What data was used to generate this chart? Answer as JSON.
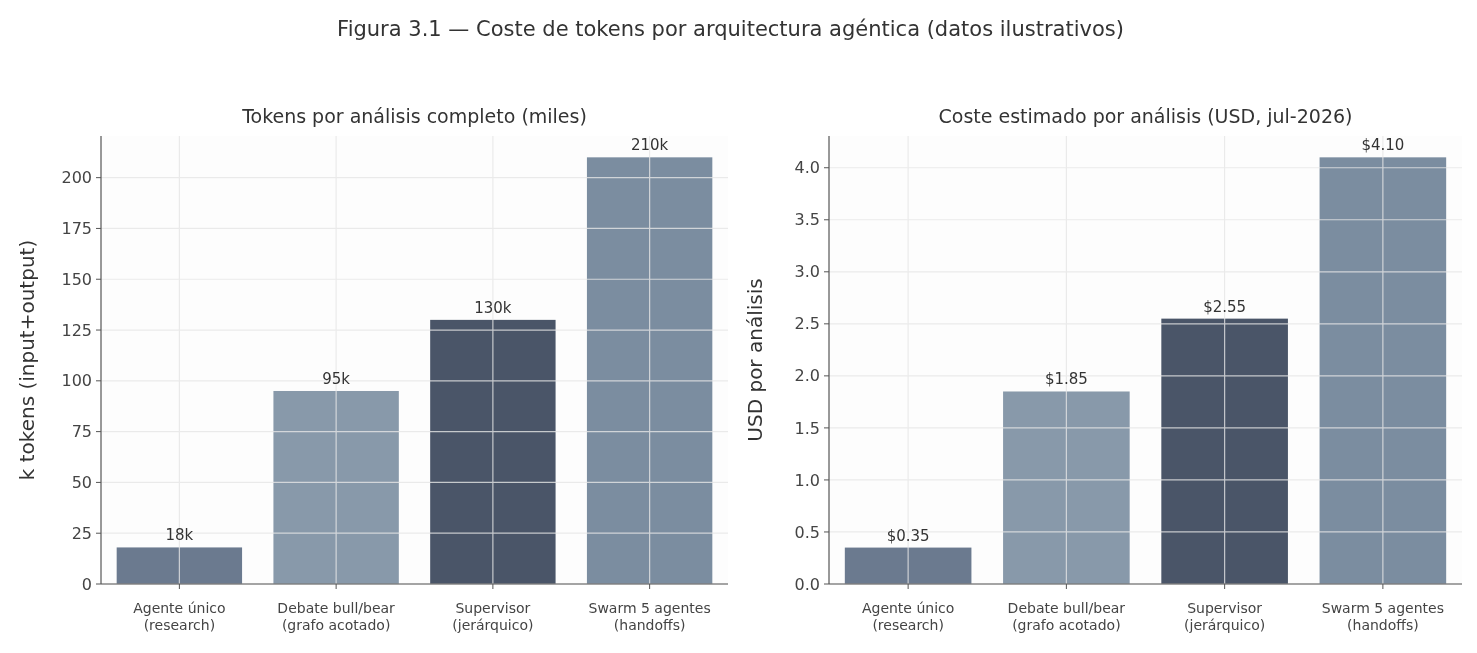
{
  "chart_data": [
    {
      "type": "bar",
      "title": "Tokens por análisis completo (miles)",
      "ylabel": "k tokens (input+output)",
      "annotations": [
        "Figura 3.1 — Coste de tokens por arquitectura agéntica (datos ilustrativos)"
      ],
      "categories": [
        "Agente único\n(research)",
        "Debate bull/bear\n(grafo acotado)",
        "Supervisor\n(jerárquico)",
        "Swarm 5 agentes\n(handoffs)"
      ],
      "values": [
        18,
        95,
        130,
        210
      ],
      "value_labels": [
        "18k",
        "95k",
        "130k",
        "210k"
      ],
      "colors": [
        "#6b7a8f",
        "#8899aa",
        "#4a5568",
        "#7b8da0"
      ],
      "ylim": [
        0,
        220.5
      ],
      "yticks": [
        0,
        25,
        50,
        75,
        100,
        125,
        150,
        175,
        200
      ],
      "grid": true
    },
    {
      "type": "bar",
      "title": "Coste estimado por análisis (USD, jul-2026)",
      "ylabel": "USD por análisis",
      "categories": [
        "Agente único\n(research)",
        "Debate bull/bear\n(grafo acotado)",
        "Supervisor\n(jerárquico)",
        "Swarm 5 agentes\n(handoffs)"
      ],
      "values": [
        0.35,
        1.85,
        2.55,
        4.1
      ],
      "value_labels": [
        "$0.35",
        "$1.85",
        "$2.55",
        "$4.10"
      ],
      "colors": [
        "#6b7a8f",
        "#8899aa",
        "#4a5568",
        "#7b8da0"
      ],
      "ylim": [
        0,
        4.305
      ],
      "yticks": [
        {
          "value": 0,
          "label": "0.0"
        },
        0.5,
        {
          "value": 1,
          "label": "1.0"
        },
        1.5,
        {
          "value": 2,
          "label": "2.0"
        },
        2.5,
        {
          "value": 3,
          "label": "3.0"
        },
        3.5,
        {
          "value": 4,
          "label": "4.0"
        }
      ],
      "grid": true
    }
  ]
}
